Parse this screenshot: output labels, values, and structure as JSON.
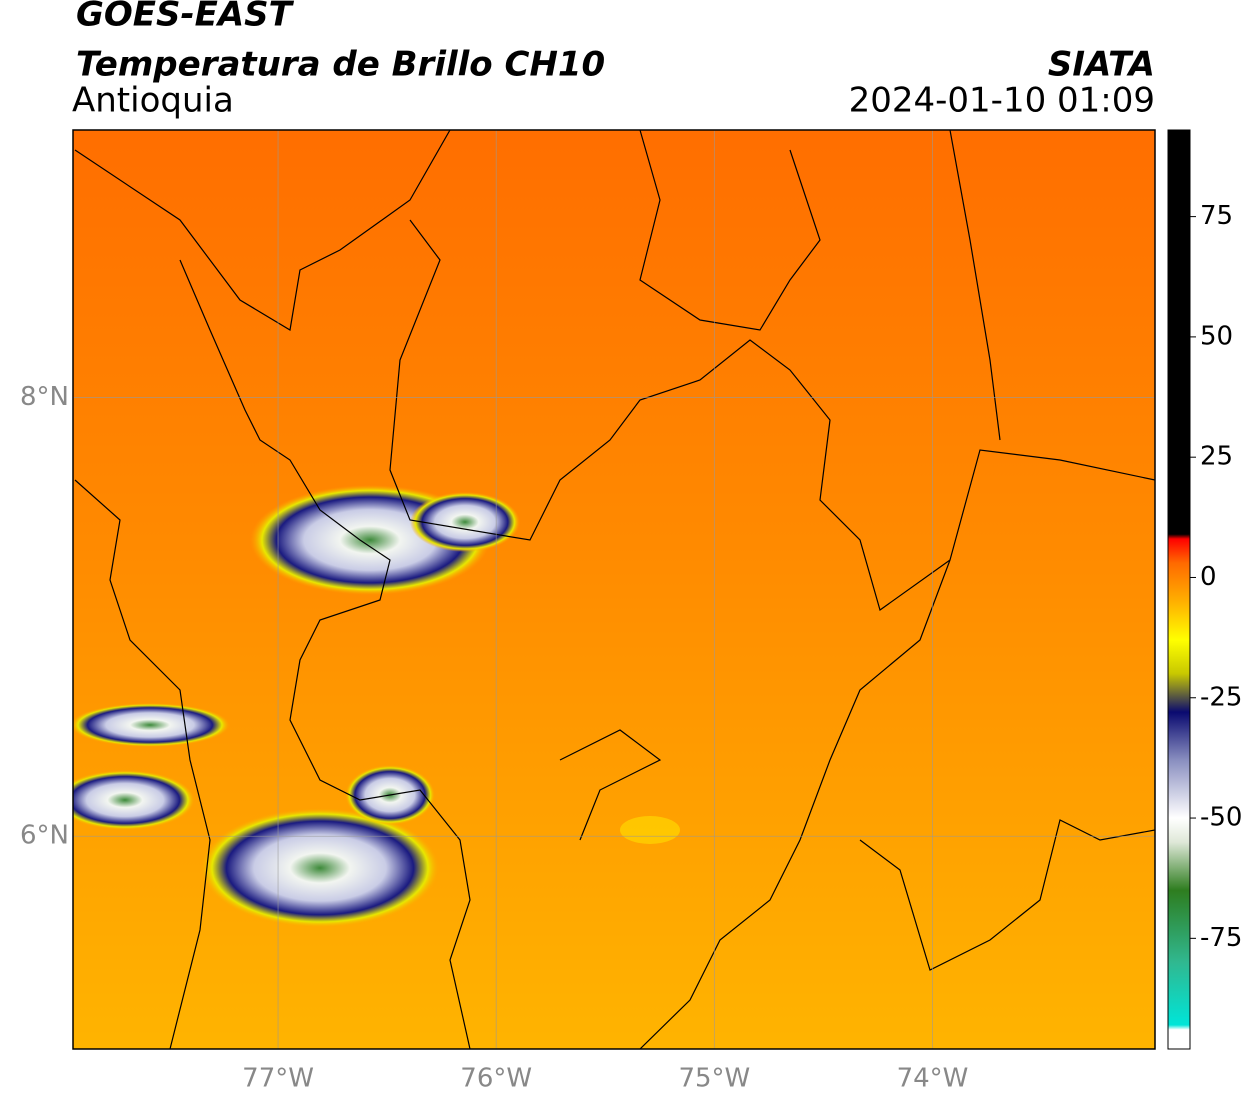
{
  "header": {
    "title": "GOES-EAST",
    "subtitle": "Temperatura de Brillo CH10",
    "region": "Antioquia",
    "source": "SIATA",
    "datetime": "2024-01-10 01:09"
  },
  "map": {
    "xlim": [
      -77.94,
      -72.98
    ],
    "ylim": [
      5.03,
      9.22
    ],
    "xticks": [
      {
        "value": -77,
        "label": "77°W"
      },
      {
        "value": -76,
        "label": "76°W"
      },
      {
        "value": -75,
        "label": "75°W"
      },
      {
        "value": -74,
        "label": "74°W"
      }
    ],
    "yticks": [
      {
        "value": 8,
        "label": "8°N"
      },
      {
        "value": 6,
        "label": "6°N"
      }
    ],
    "grid": true
  },
  "colorbar": {
    "lim": [
      -98,
      93
    ],
    "ticks": [
      75,
      50,
      25,
      0,
      -25,
      -50,
      -75
    ],
    "stops": [
      {
        "value": -98,
        "color": "#ffffff"
      },
      {
        "value": -94,
        "color": "#ffffff"
      },
      {
        "value": -93,
        "color": "#00e5d8"
      },
      {
        "value": -80,
        "color": "#30b890"
      },
      {
        "value": -65,
        "color": "#2e7d1f"
      },
      {
        "value": -55,
        "color": "#dfe8d8"
      },
      {
        "value": -50,
        "color": "#ffffff"
      },
      {
        "value": -38,
        "color": "#8a8fc0"
      },
      {
        "value": -28,
        "color": "#0a0a70"
      },
      {
        "value": -20,
        "color": "#c8c800"
      },
      {
        "value": -13,
        "color": "#ffff00"
      },
      {
        "value": -5,
        "color": "#ffb000"
      },
      {
        "value": 3,
        "color": "#ff6a00"
      },
      {
        "value": 8,
        "color": "#ff0000"
      },
      {
        "value": 9,
        "color": "#000000"
      },
      {
        "value": 93,
        "color": "#000000"
      }
    ]
  }
}
